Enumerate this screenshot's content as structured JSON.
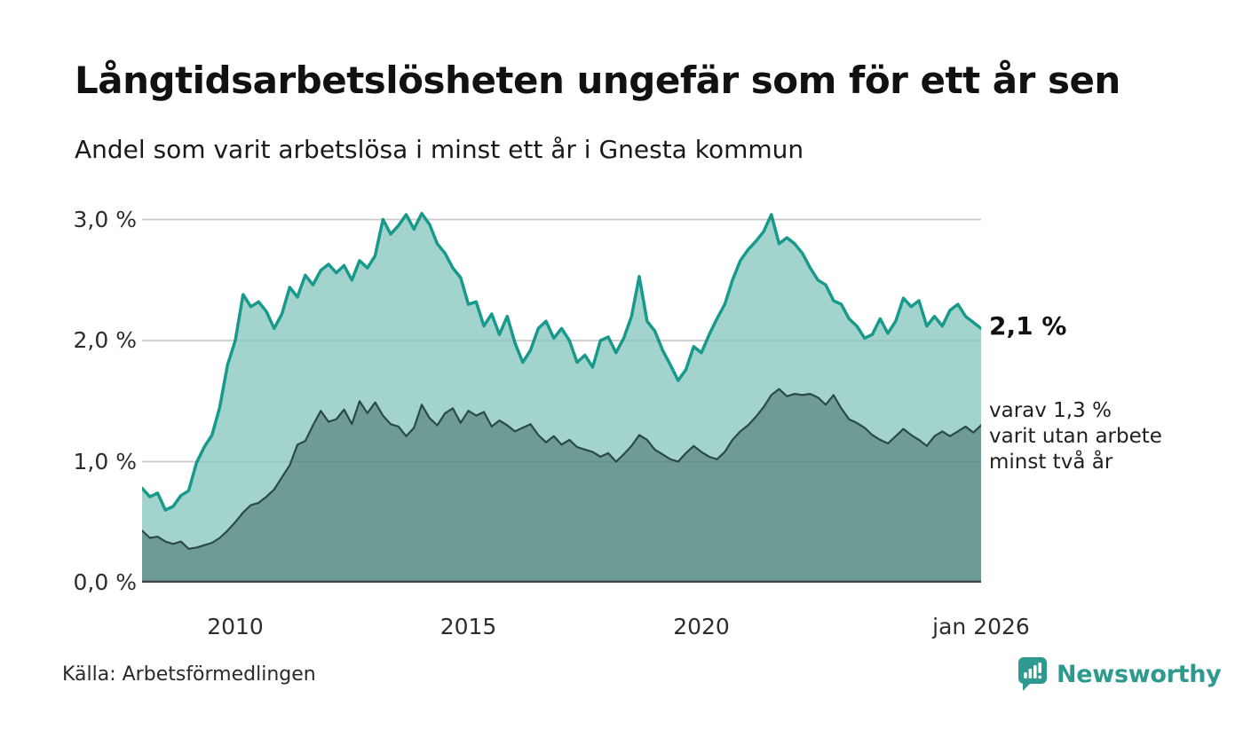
{
  "header": {
    "title": "Långtidsarbetslösheten ungefär som för ett år sen",
    "subtitle": "Andel som varit arbetslösa i minst ett år i Gnesta kommun"
  },
  "chart_data": {
    "type": "area",
    "title": "Långtidsarbetslösheten ungefär som för ett år sen",
    "subtitle": "Andel som varit arbetslösa i minst ett år i Gnesta kommun",
    "unit": "%",
    "x_start": 2008.0,
    "x_end": 2026.0,
    "x_step_years": 0.166667,
    "ylim": [
      0,
      3.15
    ],
    "grid": "horizontal",
    "y_ticks": [
      {
        "label": "0,0 %",
        "value": 0
      },
      {
        "label": "1,0 %",
        "value": 1
      },
      {
        "label": "2,0 %",
        "value": 2
      },
      {
        "label": "3,0 %",
        "value": 3
      }
    ],
    "x_ticks": [
      {
        "label": "2010",
        "value": 2010
      },
      {
        "label": "2015",
        "value": 2015
      },
      {
        "label": "2020",
        "value": 2020
      },
      {
        "label": "jan 2026",
        "value": 2026
      }
    ],
    "series": [
      {
        "name": "Andel som varit arbetslösa i minst ett år",
        "stroke": "#179a8c",
        "fill": "#a2d4cd",
        "stroke_width": 3.5,
        "end_value": 2.1,
        "values": [
          0.78,
          0.71,
          0.74,
          0.6,
          0.63,
          0.72,
          0.76,
          0.99,
          1.12,
          1.22,
          1.45,
          1.8,
          2.0,
          2.38,
          2.28,
          2.32,
          2.24,
          2.1,
          2.22,
          2.44,
          2.36,
          2.54,
          2.46,
          2.58,
          2.63,
          2.56,
          2.62,
          2.5,
          2.66,
          2.6,
          2.7,
          3.0,
          2.88,
          2.95,
          3.04,
          2.92,
          3.05,
          2.96,
          2.8,
          2.72,
          2.6,
          2.52,
          2.3,
          2.32,
          2.12,
          2.22,
          2.05,
          2.2,
          1.98,
          1.82,
          1.92,
          2.1,
          2.16,
          2.02,
          2.1,
          2.0,
          1.82,
          1.88,
          1.78,
          2.0,
          2.03,
          1.9,
          2.02,
          2.2,
          2.53,
          2.16,
          2.08,
          1.92,
          1.8,
          1.67,
          1.76,
          1.95,
          1.9,
          2.05,
          2.18,
          2.3,
          2.5,
          2.66,
          2.75,
          2.82,
          2.9,
          3.04,
          2.8,
          2.85,
          2.8,
          2.72,
          2.6,
          2.5,
          2.46,
          2.33,
          2.3,
          2.18,
          2.12,
          2.02,
          2.05,
          2.18,
          2.06,
          2.16,
          2.35,
          2.28,
          2.33,
          2.12,
          2.2,
          2.12,
          2.25,
          2.3,
          2.2,
          2.15,
          2.1
        ]
      },
      {
        "name": "varav varit utan arbete minst två år",
        "stroke": "#2b4a44",
        "fill": "#6f9b96",
        "stroke_width": 2.2,
        "end_value": 1.3,
        "values": [
          0.43,
          0.37,
          0.38,
          0.34,
          0.32,
          0.34,
          0.28,
          0.29,
          0.31,
          0.33,
          0.37,
          0.43,
          0.5,
          0.58,
          0.64,
          0.66,
          0.71,
          0.77,
          0.87,
          0.97,
          1.14,
          1.17,
          1.3,
          1.42,
          1.33,
          1.35,
          1.43,
          1.31,
          1.5,
          1.4,
          1.49,
          1.38,
          1.31,
          1.29,
          1.21,
          1.28,
          1.47,
          1.36,
          1.3,
          1.4,
          1.44,
          1.32,
          1.42,
          1.38,
          1.41,
          1.29,
          1.34,
          1.3,
          1.25,
          1.28,
          1.31,
          1.22,
          1.16,
          1.21,
          1.14,
          1.18,
          1.12,
          1.1,
          1.08,
          1.04,
          1.07,
          1.0,
          1.06,
          1.13,
          1.22,
          1.18,
          1.1,
          1.06,
          1.02,
          1.0,
          1.07,
          1.13,
          1.08,
          1.04,
          1.02,
          1.08,
          1.18,
          1.25,
          1.3,
          1.37,
          1.45,
          1.55,
          1.6,
          1.54,
          1.56,
          1.55,
          1.56,
          1.53,
          1.47,
          1.55,
          1.44,
          1.35,
          1.32,
          1.28,
          1.22,
          1.18,
          1.15,
          1.21,
          1.27,
          1.22,
          1.18,
          1.13,
          1.21,
          1.25,
          1.21,
          1.25,
          1.29,
          1.24,
          1.3
        ]
      }
    ]
  },
  "annotations": {
    "end_value_total": "2,1 %",
    "end_note_lines": [
      "varav 1,3 %",
      "varit utan arbete",
      "minst två år"
    ]
  },
  "footer": {
    "source": "Källa: Arbetsförmedlingen",
    "brand": "Newsworthy"
  },
  "colors": {
    "series_total_stroke": "#179a8c",
    "series_total_fill": "#a2d4cd",
    "series_2yr_stroke": "#2b4a44",
    "series_2yr_fill": "#6f9b96",
    "gridline": "#dcdcdc",
    "axis_baseline": "#3c4946",
    "brand_teal": "#2e9a8f",
    "text": "#111111"
  }
}
